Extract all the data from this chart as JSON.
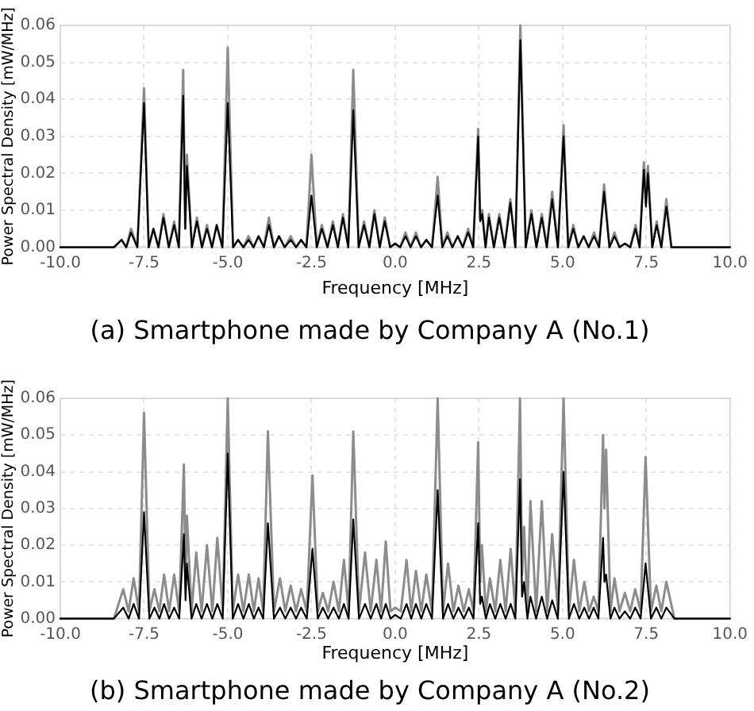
{
  "chart_data": [
    {
      "type": "line",
      "title": "(a) Smartphone made by Company A (No.1)",
      "xlabel": "Frequency [MHz]",
      "ylabel": "Power Spectral Density [mW/MHz]",
      "x": [
        -10,
        -8.4,
        -8.17,
        -8.03,
        -7.89,
        -7.7,
        -7.5,
        -7.36,
        -7.22,
        -7.07,
        -6.92,
        -6.76,
        -6.6,
        -6.46,
        -6.33,
        -6.27,
        -6.22,
        -6.07,
        -5.92,
        -5.77,
        -5.62,
        -5.47,
        -5.33,
        -5.16,
        -5,
        -4.84,
        -4.69,
        -4.53,
        -4.38,
        -4.23,
        -4.08,
        -3.92,
        -3.77,
        -3.62,
        -3.47,
        -3.3,
        -3.12,
        -2.96,
        -2.81,
        -2.65,
        -2.5,
        -2.34,
        -2.19,
        -2.02,
        -1.86,
        -1.71,
        -1.56,
        -1.4,
        -1.25,
        -1.09,
        -0.93,
        -0.77,
        -0.62,
        -0.46,
        -0.31,
        -0.15,
        0,
        0.15,
        0.31,
        0.46,
        0.62,
        0.77,
        0.93,
        1.1,
        1.27,
        1.41,
        1.56,
        1.71,
        1.87,
        2.02,
        2.18,
        2.33,
        2.48,
        2.54,
        2.6,
        2.7,
        2.8,
        2.95,
        3.11,
        3.27,
        3.44,
        3.59,
        3.74,
        3.9,
        4.07,
        4.22,
        4.38,
        4.53,
        4.69,
        4.86,
        5.03,
        5.17,
        5.32,
        5.47,
        5.63,
        5.78,
        5.94,
        6.09,
        6.24,
        6.4,
        6.55,
        6.7,
        6.86,
        7.02,
        7.18,
        7.3,
        7.43,
        7.49,
        7.55,
        7.68,
        7.81,
        7.95,
        8.1,
        8.25,
        10
      ],
      "series": [
        {
          "color": "#8c8c8c",
          "values": [
            0,
            0,
            0.002,
            0,
            0.005,
            0,
            0.043,
            0,
            0.005,
            0,
            0.009,
            0,
            0.007,
            0,
            0.048,
            0.005,
            0.025,
            0,
            0.008,
            0,
            0.006,
            0,
            0.006,
            0,
            0.054,
            0,
            0.002,
            0,
            0.003,
            0,
            0.003,
            0,
            0.008,
            0,
            0.003,
            0,
            0.003,
            0,
            0.002,
            0,
            0.025,
            0,
            0.006,
            0,
            0.007,
            0,
            0.009,
            0,
            0.048,
            0,
            0.007,
            0,
            0.01,
            0,
            0.008,
            0,
            0.001,
            0,
            0.004,
            0,
            0.004,
            0,
            0.002,
            0,
            0.019,
            0,
            0.004,
            0,
            0.003,
            0,
            0.005,
            0,
            0.032,
            0.008,
            0.01,
            0,
            0.009,
            0,
            0.009,
            0,
            0.013,
            0,
            0.06,
            0,
            0.01,
            0,
            0.009,
            0,
            0.015,
            0,
            0.033,
            0,
            0.006,
            0,
            0.003,
            0,
            0.004,
            0,
            0.017,
            0,
            0.004,
            0,
            0.001,
            0,
            0.006,
            0,
            0.023,
            0.012,
            0.022,
            0,
            0.007,
            0,
            0.013,
            0,
            0
          ]
        },
        {
          "color": "#000000",
          "values": [
            0,
            0,
            0.002,
            0,
            0.004,
            0,
            0.039,
            0,
            0.005,
            0,
            0.008,
            0,
            0.006,
            0,
            0.041,
            0.005,
            0.022,
            0,
            0.007,
            0,
            0.005,
            0,
            0.006,
            0,
            0.039,
            0,
            0.002,
            0,
            0.002,
            0,
            0.003,
            0,
            0.006,
            0,
            0.003,
            0,
            0.002,
            0,
            0.002,
            0,
            0.014,
            0,
            0.005,
            0,
            0.006,
            0,
            0.008,
            0,
            0.037,
            0,
            0.006,
            0,
            0.009,
            0,
            0.007,
            0,
            0.001,
            0,
            0.003,
            0,
            0.003,
            0,
            0.002,
            0,
            0.014,
            0,
            0.003,
            0,
            0.003,
            0,
            0.004,
            0,
            0.03,
            0.007,
            0.009,
            0,
            0.008,
            0,
            0.008,
            0,
            0.012,
            0,
            0.056,
            0,
            0.009,
            0,
            0.008,
            0,
            0.013,
            0,
            0.03,
            0,
            0.005,
            0,
            0.003,
            0,
            0.003,
            0,
            0.015,
            0,
            0.003,
            0,
            0.001,
            0,
            0.005,
            0,
            0.021,
            0.011,
            0.02,
            0,
            0.006,
            0,
            0.011,
            0,
            0
          ]
        }
      ],
      "xlim": [
        -10,
        10
      ],
      "xticks": [
        {
          "value": -10,
          "label": "-10.0"
        },
        -7.5,
        {
          "value": -5,
          "label": "-5.0"
        },
        -2.5,
        {
          "value": 0,
          "label": "0.0"
        },
        2.5,
        {
          "value": 5,
          "label": "5.0"
        },
        7.5,
        {
          "value": 10,
          "label": "10.0"
        }
      ],
      "ylim": [
        0,
        0.06
      ],
      "yticks": [
        {
          "value": 0,
          "label": "0.00"
        },
        0.01,
        0.02,
        0.03,
        0.04,
        0.05,
        0.06
      ],
      "grid": true,
      "marker": "none"
    },
    {
      "type": "line",
      "title": "(b) Smartphone made by Company A (No.2)",
      "xlabel": "Frequency [MHz]",
      "ylabel": "Power Spectral Density [mW/MHz]",
      "x": [
        -10,
        -8.4,
        -8.12,
        -7.96,
        -7.81,
        -7.65,
        -7.5,
        -7.34,
        -7.19,
        -7.04,
        -6.9,
        -6.75,
        -6.6,
        -6.45,
        -6.31,
        -6.26,
        -6.22,
        -6.08,
        -5.94,
        -5.78,
        -5.62,
        -5.46,
        -5.31,
        -5.15,
        -5,
        -4.85,
        -4.69,
        -4.53,
        -4.37,
        -4.22,
        -4.08,
        -3.94,
        -3.8,
        -3.62,
        -3.44,
        -3.28,
        -3.12,
        -2.96,
        -2.81,
        -2.64,
        -2.47,
        -2.31,
        -2.16,
        -2,
        -1.84,
        -1.68,
        -1.53,
        -1.39,
        -1.25,
        -1.08,
        -0.9,
        -0.73,
        -0.56,
        -0.42,
        -0.28,
        -0.14,
        0,
        0.17,
        0.34,
        0.48,
        0.62,
        0.78,
        0.93,
        1.1,
        1.27,
        1.43,
        1.58,
        1.74,
        1.89,
        2.05,
        2.2,
        2.34,
        2.48,
        2.54,
        2.59,
        2.71,
        2.83,
        2.99,
        3.14,
        3.3,
        3.45,
        3.59,
        3.73,
        3.79,
        3.85,
        3.95,
        4.04,
        4.21,
        4.38,
        4.54,
        4.69,
        4.86,
        5.03,
        5.19,
        5.34,
        5.5,
        5.65,
        5.79,
        5.93,
        6.07,
        6.21,
        6.25,
        6.3,
        6.43,
        6.55,
        6.7,
        6.86,
        7.02,
        7.17,
        7.33,
        7.48,
        7.64,
        7.8,
        7.95,
        8.1,
        8.34,
        10
      ],
      "series": [
        {
          "color": "#8c8c8c",
          "values": [
            0,
            0,
            0.008,
            0.002,
            0.011,
            0.002,
            0.056,
            0.002,
            0.008,
            0.002,
            0.012,
            0.002,
            0.012,
            0.002,
            0.042,
            0.01,
            0.028,
            0.002,
            0.018,
            0.002,
            0.02,
            0.002,
            0.022,
            0.002,
            0.06,
            0.002,
            0.012,
            0.002,
            0.012,
            0.002,
            0.011,
            0.002,
            0.051,
            0.002,
            0.011,
            0.002,
            0.009,
            0.002,
            0.008,
            0.002,
            0.039,
            0.002,
            0.007,
            0.002,
            0.01,
            0.002,
            0.016,
            0.002,
            0.051,
            0.002,
            0.018,
            0.002,
            0.016,
            0.002,
            0.021,
            0.002,
            0.003,
            0.002,
            0.016,
            0.002,
            0.013,
            0.002,
            0.012,
            0.002,
            0.06,
            0.002,
            0.015,
            0.002,
            0.009,
            0.002,
            0.008,
            0.002,
            0.048,
            0.01,
            0.02,
            0.002,
            0.011,
            0.002,
            0.016,
            0.002,
            0.019,
            0.002,
            0.06,
            0.012,
            0.025,
            0.002,
            0.032,
            0.002,
            0.032,
            0.002,
            0.023,
            0.002,
            0.06,
            0.002,
            0.016,
            0.002,
            0.01,
            0.002,
            0.006,
            0.002,
            0.05,
            0.03,
            0.046,
            0.002,
            0.011,
            0.002,
            0.007,
            0.002,
            0.008,
            0.002,
            0.044,
            0.002,
            0.009,
            0.002,
            0.01,
            0,
            0
          ]
        },
        {
          "color": "#000000",
          "values": [
            0,
            0,
            0.003,
            0,
            0.004,
            0,
            0.029,
            0,
            0.003,
            0,
            0.004,
            0,
            0.003,
            0,
            0.023,
            0.005,
            0.015,
            0,
            0.004,
            0,
            0.004,
            0,
            0.004,
            0,
            0.045,
            0,
            0.004,
            0,
            0.004,
            0,
            0.003,
            0,
            0.026,
            0,
            0.003,
            0,
            0.003,
            0,
            0.003,
            0,
            0.019,
            0,
            0.003,
            0,
            0.003,
            0,
            0.004,
            0,
            0.027,
            0,
            0.004,
            0,
            0.004,
            0,
            0.004,
            0,
            0.001,
            0,
            0.004,
            0,
            0.004,
            0,
            0.004,
            0,
            0.035,
            0,
            0.004,
            0,
            0.003,
            0,
            0.003,
            0,
            0.026,
            0.004,
            0.006,
            0,
            0.004,
            0,
            0.004,
            0,
            0.004,
            0,
            0.038,
            0.006,
            0.01,
            0,
            0.006,
            0,
            0.006,
            0,
            0.005,
            0,
            0.04,
            0,
            0.004,
            0,
            0.003,
            0,
            0.003,
            0,
            0.022,
            0.01,
            0.012,
            0,
            0.003,
            0,
            0.002,
            0,
            0.003,
            0,
            0.015,
            0,
            0.003,
            0,
            0.003,
            0,
            0
          ]
        }
      ],
      "xlim": [
        -10,
        10
      ],
      "xticks": [
        {
          "value": -10,
          "label": "-10.0"
        },
        -7.5,
        {
          "value": -5,
          "label": "-5.0"
        },
        -2.5,
        {
          "value": 0,
          "label": "0.0"
        },
        2.5,
        {
          "value": 5,
          "label": "5.0"
        },
        7.5,
        {
          "value": 10,
          "label": "10.0"
        }
      ],
      "ylim": [
        0,
        0.06
      ],
      "yticks": [
        {
          "value": 0,
          "label": "0.00"
        },
        0.01,
        0.02,
        0.03,
        0.04,
        0.05,
        0.06
      ],
      "grid": true,
      "marker": "none"
    }
  ]
}
